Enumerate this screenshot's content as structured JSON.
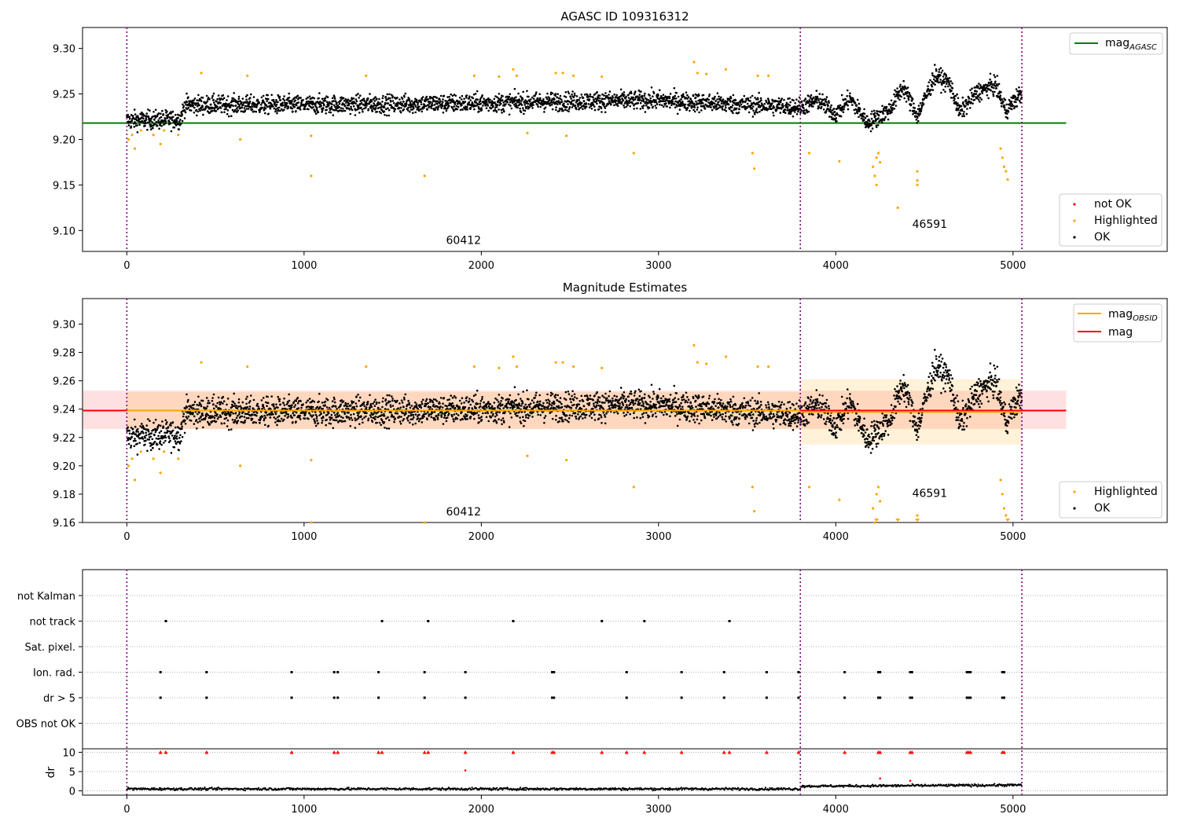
{
  "chart_data": [
    {
      "type": "scatter",
      "title": "AGASC ID 109316312",
      "xlim": [
        -250,
        5870
      ],
      "ylim": [
        9.077,
        9.323
      ],
      "xticks": [
        0,
        1000,
        2000,
        3000,
        4000,
        5000
      ],
      "yticks": [
        9.1,
        9.15,
        9.2,
        9.25,
        9.3
      ],
      "ytick_labels": [
        "9.10",
        "9.15",
        "9.20",
        "9.25",
        "9.30"
      ],
      "obs_boundaries": [
        0,
        3800,
        5050
      ],
      "obs_labels": [
        {
          "text": "60412",
          "x": 1900,
          "y": 9.085
        },
        {
          "text": "46591",
          "x": 4530,
          "y": 9.103
        }
      ],
      "lines": [
        {
          "name": "magAGASC",
          "y": 9.218,
          "x_range": [
            -250,
            5300
          ],
          "color": "#008000"
        }
      ],
      "legends": [
        {
          "position": "top-right",
          "entries": [
            {
              "label": "mag",
              "subscript": "AGASC",
              "marker": "line",
              "color": "#008000"
            }
          ]
        },
        {
          "position": "bottom-right",
          "entries": [
            {
              "label": "not OK",
              "marker": "dot",
              "color": "#ff0000"
            },
            {
              "label": "Highlighted",
              "marker": "dot",
              "color": "#ffa500"
            },
            {
              "label": "OK",
              "marker": "dot",
              "color": "#000000"
            }
          ]
        }
      ],
      "series": [
        {
          "name": "OK",
          "color": "#000000",
          "trend": [
            [
              0,
              9.221
            ],
            [
              300,
              9.222
            ],
            [
              330,
              9.238
            ],
            [
              1000,
              9.238
            ],
            [
              2000,
              9.24
            ],
            [
              2500,
              9.242
            ],
            [
              3000,
              9.243
            ],
            [
              3500,
              9.238
            ],
            [
              3800,
              9.236
            ],
            [
              3900,
              9.243
            ],
            [
              4000,
              9.228
            ],
            [
              4080,
              9.245
            ],
            [
              4180,
              9.218
            ],
            [
              4300,
              9.232
            ],
            [
              4380,
              9.258
            ],
            [
              4460,
              9.226
            ],
            [
              4560,
              9.27
            ],
            [
              4640,
              9.262
            ],
            [
              4700,
              9.23
            ],
            [
              4800,
              9.252
            ],
            [
              4900,
              9.26
            ],
            [
              4960,
              9.232
            ],
            [
              5050,
              9.252
            ]
          ],
          "spread": 0.01
        },
        {
          "name": "Highlighted",
          "color": "#ffa500",
          "points": [
            [
              10,
              9.2
            ],
            [
              30,
              9.205
            ],
            [
              45,
              9.19
            ],
            [
              80,
              9.21
            ],
            [
              150,
              9.205
            ],
            [
              190,
              9.195
            ],
            [
              210,
              9.21
            ],
            [
              290,
              9.205
            ],
            [
              420,
              9.273
            ],
            [
              640,
              9.2
            ],
            [
              680,
              9.27
            ],
            [
              1040,
              9.204
            ],
            [
              1040,
              9.16
            ],
            [
              1350,
              9.27
            ],
            [
              1680,
              9.16
            ],
            [
              1960,
              9.27
            ],
            [
              2100,
              9.269
            ],
            [
              2180,
              9.277
            ],
            [
              2200,
              9.27
            ],
            [
              2260,
              9.207
            ],
            [
              2420,
              9.273
            ],
            [
              2460,
              9.273
            ],
            [
              2480,
              9.204
            ],
            [
              2520,
              9.27
            ],
            [
              2680,
              9.269
            ],
            [
              2860,
              9.185
            ],
            [
              3200,
              9.285
            ],
            [
              3220,
              9.273
            ],
            [
              3270,
              9.272
            ],
            [
              3380,
              9.277
            ],
            [
              3530,
              9.185
            ],
            [
              3540,
              9.168
            ],
            [
              3560,
              9.27
            ],
            [
              3620,
              9.27
            ],
            [
              3850,
              9.185
            ],
            [
              4020,
              9.176
            ],
            [
              4210,
              9.17
            ],
            [
              4220,
              9.16
            ],
            [
              4230,
              9.18
            ],
            [
              4230,
              9.15
            ],
            [
              4240,
              9.185
            ],
            [
              4250,
              9.175
            ],
            [
              4350,
              9.125
            ],
            [
              4460,
              9.165
            ],
            [
              4460,
              9.155
            ],
            [
              4460,
              9.15
            ],
            [
              4930,
              9.19
            ],
            [
              4940,
              9.18
            ],
            [
              4950,
              9.17
            ],
            [
              4960,
              9.165
            ],
            [
              4970,
              9.156
            ]
          ]
        }
      ]
    },
    {
      "type": "scatter",
      "title": "Magnitude Estimates",
      "xlim": [
        -250,
        5870
      ],
      "ylim": [
        9.16,
        9.318
      ],
      "xticks": [
        0,
        1000,
        2000,
        3000,
        4000,
        5000
      ],
      "yticks": [
        9.16,
        9.18,
        9.2,
        9.22,
        9.24,
        9.26,
        9.28,
        9.3
      ],
      "ytick_labels": [
        "9.16",
        "9.18",
        "9.20",
        "9.22",
        "9.24",
        "9.26",
        "9.28",
        "9.30"
      ],
      "obs_boundaries": [
        0,
        3800,
        5050
      ],
      "obs_labels": [
        {
          "text": "60412",
          "x": 1900,
          "y": 9.165
        },
        {
          "text": "46591",
          "x": 4530,
          "y": 9.178
        }
      ],
      "lines": [
        {
          "name": "mag",
          "y": 9.239,
          "x_range": [
            -250,
            5300
          ],
          "color": "#ff0000"
        },
        {
          "name": "magOBSID",
          "y": 9.239,
          "x_range": [
            0,
            3800
          ],
          "color": "#ffa500"
        },
        {
          "name": "magOBSID",
          "y": 9.238,
          "x_range": [
            3800,
            5050
          ],
          "color": "#ffa500"
        }
      ],
      "bands": [
        {
          "y_range": [
            9.226,
            9.253
          ],
          "x_range": [
            -250,
            5300
          ],
          "color": "#ff0000",
          "opacity": 0.12
        },
        {
          "y_range": [
            9.226,
            9.252
          ],
          "x_range": [
            0,
            3800
          ],
          "color": "#ffa500",
          "opacity": 0.15
        },
        {
          "y_range": [
            9.215,
            9.261
          ],
          "x_range": [
            3800,
            5050
          ],
          "color": "#ffa500",
          "opacity": 0.15
        }
      ],
      "legends": [
        {
          "position": "top-right",
          "entries": [
            {
              "label": "mag",
              "subscript": "OBSID",
              "marker": "line",
              "color": "#ffa500"
            },
            {
              "label": "mag",
              "subscript": "",
              "marker": "line",
              "color": "#ff0000"
            }
          ]
        },
        {
          "position": "bottom-right",
          "entries": [
            {
              "label": "Highlighted",
              "marker": "dot",
              "color": "#ffa500"
            },
            {
              "label": "OK",
              "marker": "dot",
              "color": "#000000"
            }
          ]
        }
      ]
    },
    {
      "type": "scatter",
      "title": "",
      "xlim": [
        -250,
        5870
      ],
      "xticks": [
        0,
        1000,
        2000,
        3000,
        4000,
        5000
      ],
      "obs_boundaries": [
        0,
        3800,
        5050
      ],
      "flag_categories": [
        "not Kalman",
        "not track",
        "Sat. pixel.",
        "Ion. rad.",
        "dr > 5",
        "OBS not OK"
      ],
      "flags": {
        "not track": [
          220,
          1440,
          1700,
          2180,
          2680,
          2920,
          3400
        ],
        "Ion. rad.": [
          190,
          450,
          930,
          1170,
          1190,
          1420,
          1680,
          1910,
          2400,
          2410,
          2820,
          3130,
          3370,
          3610,
          3790,
          4050,
          4240,
          4250,
          4420,
          4430,
          4740,
          4750,
          4760,
          4940,
          4950
        ],
        "dr > 5": [
          190,
          450,
          930,
          1170,
          1190,
          1420,
          1680,
          1910,
          2400,
          2410,
          2820,
          3130,
          3370,
          3610,
          3790,
          4050,
          4240,
          4250,
          4420,
          4430,
          4740,
          4750,
          4760,
          4940,
          4950
        ]
      },
      "dr": {
        "ylabel": "dr",
        "ylim": [
          -0.5,
          10.5
        ],
        "yticks": [
          0,
          5,
          10
        ],
        "ytick_labels": [
          "0",
          "5",
          "10"
        ],
        "baseline": [
          [
            0,
            0.5
          ],
          [
            3800,
            0.5
          ],
          [
            3800,
            1.2
          ],
          [
            5050,
            1.5
          ]
        ],
        "spread": 0.3,
        "clipped_at_10": [
          190,
          220,
          450,
          930,
          1170,
          1190,
          1420,
          1440,
          1680,
          1700,
          1910,
          2180,
          2400,
          2410,
          2680,
          2820,
          2920,
          3130,
          3370,
          3400,
          3610,
          3790,
          4050,
          4240,
          4250,
          4420,
          4430,
          4740,
          4750,
          4760,
          4940,
          4950
        ],
        "outliers": [
          [
            1910,
            5.3
          ],
          [
            4250,
            3.2
          ],
          [
            4420,
            2.6
          ]
        ]
      }
    }
  ]
}
